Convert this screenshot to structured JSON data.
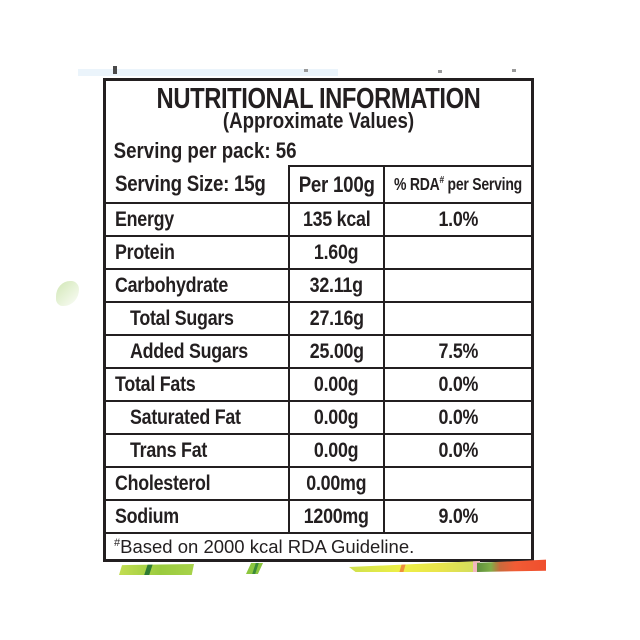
{
  "colors": {
    "ink": "#231f20",
    "paper": "#ffffff",
    "strip_light_green": "#9acb3e",
    "strip_dark_green": "#2e7a33",
    "strip_yellow": "#eef046",
    "strip_orange": "#ef8f3a",
    "strip_red": "#f15c35",
    "strip_pink": "#f2b7c0"
  },
  "label": {
    "title": "NUTRITIONAL INFORMATION",
    "subtitle": "(Approximate Values)",
    "serving_per_pack": "Serving per pack: 56",
    "columns": {
      "serving_size": "Serving Size: 15g",
      "per_100g": "Per 100g",
      "rda_prefix": "% RDA",
      "rda_sup": "#",
      "rda_suffix": " per Serving"
    },
    "rows": [
      {
        "name": "Energy",
        "indent": false,
        "per100g": "135 kcal",
        "rda": "1.0%"
      },
      {
        "name": "Protein",
        "indent": false,
        "per100g": "1.60g",
        "rda": ""
      },
      {
        "name": "Carbohydrate",
        "indent": false,
        "per100g": "32.11g",
        "rda": ""
      },
      {
        "name": "Total Sugars",
        "indent": true,
        "per100g": "27.16g",
        "rda": ""
      },
      {
        "name": "Added Sugars",
        "indent": true,
        "per100g": "25.00g",
        "rda": "7.5%"
      },
      {
        "name": "Total Fats",
        "indent": false,
        "per100g": "0.00g",
        "rda": "0.0%"
      },
      {
        "name": "Saturated Fat",
        "indent": true,
        "per100g": "0.00g",
        "rda": "0.0%"
      },
      {
        "name": "Trans Fat",
        "indent": true,
        "per100g": "0.00g",
        "rda": "0.0%"
      },
      {
        "name": "Cholesterol",
        "indent": false,
        "per100g": "0.00mg",
        "rda": ""
      },
      {
        "name": "Sodium",
        "indent": false,
        "per100g": "1200mg",
        "rda": "9.0%"
      }
    ],
    "footnote": {
      "sup": "#",
      "text": "Based on 2000 kcal RDA Guideline."
    }
  }
}
